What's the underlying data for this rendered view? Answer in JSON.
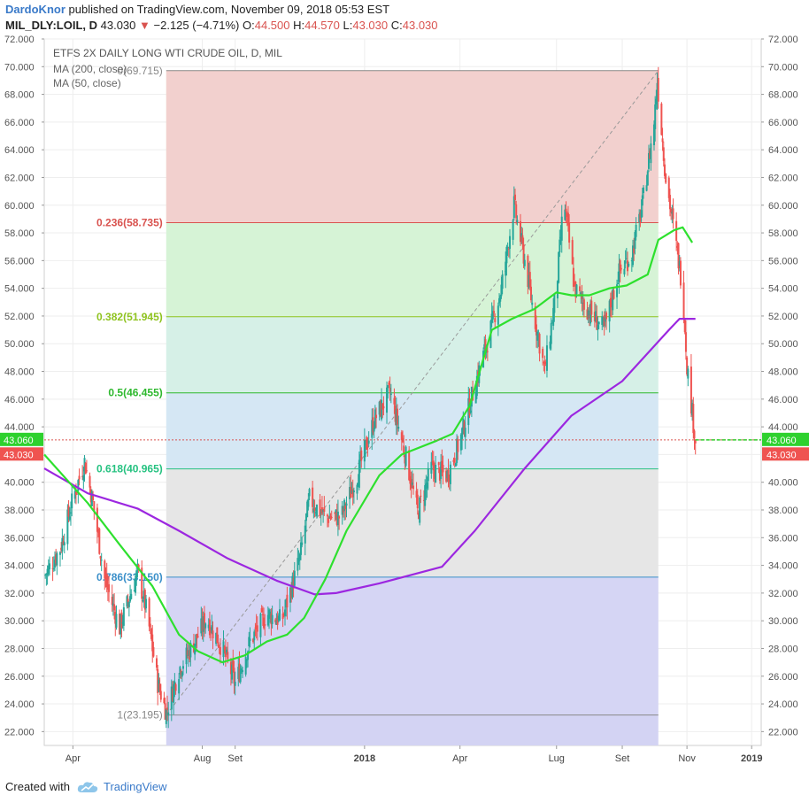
{
  "header": {
    "author": "DardoKnor",
    "published_text": "published on TradingView.com, November 09, 2018 05:53 EST",
    "symbol": "MIL_DLY:LOIL, D",
    "last": "43.030",
    "change": "−2.125 (−4.71%)",
    "o_label": "O:",
    "o_val": "44.500",
    "h_label": "H:",
    "h_val": "44.570",
    "l_label": "L:",
    "l_val": "43.030",
    "c_label": "C:",
    "c_val": "43.030"
  },
  "footer": {
    "created_with": "Created with",
    "brand": "TradingView",
    "logo_icon": "tradingview-cloud-icon"
  },
  "colors": {
    "up": "#26a69a",
    "down": "#ef5350",
    "ma200": "#9c27e0",
    "ma50": "#2ee02e",
    "fib_0": "#f2d0ce",
    "fib_236": "#eef2cf",
    "fib_382": "#d4f2d4",
    "fib_5": "#d4efe6",
    "fib_618": "#d3e6f3",
    "fib_786": "#e5e5e5",
    "fib_1": "#d3d3f3"
  },
  "chart_data": {
    "type": "candlestick",
    "title": "ETFS 2X DAILY LONG WTI CRUDE OIL, D, MIL",
    "legend": [
      "MA (200, close)",
      "MA (50, close)"
    ],
    "ylim": [
      21,
      72
    ],
    "y_ticks": [
      "22.000",
      "24.000",
      "26.000",
      "28.000",
      "30.000",
      "32.000",
      "34.000",
      "36.000",
      "38.000",
      "40.000",
      "42.000",
      "44.000",
      "46.000",
      "48.000",
      "50.000",
      "52.000",
      "54.000",
      "56.000",
      "58.000",
      "60.000",
      "62.000",
      "64.000",
      "66.000",
      "68.000",
      "70.000",
      "72.000"
    ],
    "x_ticks": [
      {
        "label": "Apr",
        "date": "2017-04-01",
        "bold": false
      },
      {
        "label": "Aug",
        "date": "2017-08-01",
        "bold": false
      },
      {
        "label": "Set",
        "date": "2017-09-01",
        "bold": false
      },
      {
        "label": "2018",
        "date": "2018-01-01",
        "bold": true
      },
      {
        "label": "Apr",
        "date": "2018-04-01",
        "bold": false
      },
      {
        "label": "Lug",
        "date": "2018-07-01",
        "bold": false
      },
      {
        "label": "Set",
        "date": "2018-09-01",
        "bold": false
      },
      {
        "label": "Nov",
        "date": "2018-11-01",
        "bold": false
      },
      {
        "label": "2019",
        "date": "2019-01-01",
        "bold": true
      }
    ],
    "x_range": [
      "2017-03-05",
      "2019-01-10"
    ],
    "close_path": [
      [
        "2017-03-05",
        33.2
      ],
      [
        "2017-03-20",
        35.2
      ],
      [
        "2017-04-01",
        38.8
      ],
      [
        "2017-04-12",
        41.5
      ],
      [
        "2017-04-20",
        38.5
      ],
      [
        "2017-05-01",
        33.0
      ],
      [
        "2017-05-15",
        29.5
      ],
      [
        "2017-06-01",
        33.5
      ],
      [
        "2017-06-10",
        30.5
      ],
      [
        "2017-06-20",
        25.5
      ],
      [
        "2017-06-28",
        23.4
      ],
      [
        "2017-07-10",
        26.5
      ],
      [
        "2017-07-25",
        28.5
      ],
      [
        "2017-08-05",
        30.2
      ],
      [
        "2017-08-20",
        28.0
      ],
      [
        "2017-09-01",
        25.5
      ],
      [
        "2017-09-15",
        28.5
      ],
      [
        "2017-10-01",
        30.5
      ],
      [
        "2017-10-15",
        30.0
      ],
      [
        "2017-11-01",
        34.5
      ],
      [
        "2017-11-10",
        38.8
      ],
      [
        "2017-11-25",
        37.5
      ],
      [
        "2017-12-10",
        37.5
      ],
      [
        "2017-12-25",
        40.5
      ],
      [
        "2018-01-10",
        44.5
      ],
      [
        "2018-01-25",
        46.5
      ],
      [
        "2018-02-10",
        41.5
      ],
      [
        "2018-02-20",
        37.8
      ],
      [
        "2018-03-05",
        41.0
      ],
      [
        "2018-03-20",
        40.5
      ],
      [
        "2018-04-01",
        43.0
      ],
      [
        "2018-04-15",
        47.0
      ],
      [
        "2018-04-28",
        50.5
      ],
      [
        "2018-05-10",
        54.0
      ],
      [
        "2018-05-22",
        60.0
      ],
      [
        "2018-06-01",
        56.0
      ],
      [
        "2018-06-10",
        52.0
      ],
      [
        "2018-06-20",
        48.0
      ],
      [
        "2018-07-01",
        54.0
      ],
      [
        "2018-07-08",
        60.5
      ],
      [
        "2018-07-18",
        54.0
      ],
      [
        "2018-07-30",
        52.5
      ],
      [
        "2018-08-15",
        51.0
      ],
      [
        "2018-08-28",
        55.0
      ],
      [
        "2018-09-10",
        56.5
      ],
      [
        "2018-09-20",
        60.0
      ],
      [
        "2018-10-01",
        66.0
      ],
      [
        "2018-10-04",
        69.0
      ],
      [
        "2018-10-12",
        62.0
      ],
      [
        "2018-10-22",
        57.0
      ],
      [
        "2018-10-28",
        54.0
      ],
      [
        "2018-11-01",
        48.5
      ],
      [
        "2018-11-06",
        45.0
      ],
      [
        "2018-11-09",
        43.03
      ]
    ],
    "ma200": [
      [
        "2017-03-05",
        41.0
      ],
      [
        "2017-04-15",
        39.2
      ],
      [
        "2017-06-01",
        38.1
      ],
      [
        "2017-07-10",
        36.5
      ],
      [
        "2017-08-25",
        34.5
      ],
      [
        "2017-10-10",
        32.9
      ],
      [
        "2017-11-15",
        31.9
      ],
      [
        "2017-12-05",
        32.0
      ],
      [
        "2018-01-15",
        32.7
      ],
      [
        "2018-03-15",
        33.9
      ],
      [
        "2018-04-15",
        36.5
      ],
      [
        "2018-06-01",
        41.0
      ],
      [
        "2018-07-15",
        44.8
      ],
      [
        "2018-09-01",
        47.3
      ],
      [
        "2018-10-15",
        51.0
      ],
      [
        "2018-10-25",
        51.8
      ],
      [
        "2018-11-09",
        51.8
      ]
    ],
    "ma50": [
      [
        "2017-03-05",
        42.0
      ],
      [
        "2017-04-15",
        38.5
      ],
      [
        "2017-05-15",
        35.5
      ],
      [
        "2017-06-15",
        32.5
      ],
      [
        "2017-07-10",
        29.0
      ],
      [
        "2017-07-28",
        27.8
      ],
      [
        "2017-08-20",
        27.0
      ],
      [
        "2017-09-10",
        27.5
      ],
      [
        "2017-10-01",
        28.5
      ],
      [
        "2017-10-20",
        29.0
      ],
      [
        "2017-11-05",
        30.2
      ],
      [
        "2017-11-25",
        33.0
      ],
      [
        "2017-12-15",
        36.5
      ],
      [
        "2018-01-15",
        40.5
      ],
      [
        "2018-02-05",
        42.0
      ],
      [
        "2018-03-10",
        43.0
      ],
      [
        "2018-03-25",
        43.5
      ],
      [
        "2018-04-10",
        45.5
      ],
      [
        "2018-05-01",
        51.0
      ],
      [
        "2018-05-20",
        51.8
      ],
      [
        "2018-06-10",
        52.5
      ],
      [
        "2018-07-01",
        53.7
      ],
      [
        "2018-07-15",
        53.5
      ],
      [
        "2018-08-01",
        53.5
      ],
      [
        "2018-08-20",
        54.0
      ],
      [
        "2018-09-05",
        54.2
      ],
      [
        "2018-09-25",
        55.0
      ],
      [
        "2018-10-05",
        57.5
      ],
      [
        "2018-10-20",
        58.2
      ],
      [
        "2018-10-28",
        58.4
      ],
      [
        "2018-11-06",
        57.3
      ]
    ],
    "fibonacci": {
      "start_date": "2017-06-28",
      "end_date": "2018-10-05",
      "trend_from": [
        "2017-06-28",
        23.195
      ],
      "trend_to": [
        "2018-10-05",
        69.715
      ],
      "levels": [
        {
          "label": "0(69.715)",
          "value": 69.715,
          "color": "#888888",
          "fill": "fib_0"
        },
        {
          "label": "0.236(58.735)",
          "value": 58.735,
          "color": "#d9534f",
          "fill": "fib_236"
        },
        {
          "label": "0.382(51.945)",
          "value": 51.945,
          "color": "#8fc31f",
          "fill": "fib_382"
        },
        {
          "label": "0.5(46.455)",
          "value": 46.455,
          "color": "#2eb82e",
          "fill": "fib_5"
        },
        {
          "label": "0.618(40.965)",
          "value": 40.965,
          "color": "#26c281",
          "fill": "fib_618"
        },
        {
          "label": "0.786(33.150)",
          "value": 33.15,
          "color": "#3a8fc9",
          "fill": "fib_786"
        },
        {
          "label": "1(23.195)",
          "value": 23.195,
          "color": "#888888",
          "fill": "fib_1"
        }
      ]
    },
    "price_lines": [
      {
        "label": "43.060",
        "value": 43.06,
        "bg": "#2ed12e",
        "dashed": true,
        "start_date": "2018-11-09"
      },
      {
        "label": "43.030",
        "value": 43.03,
        "bg": "#ef5350",
        "dashed": false
      }
    ]
  }
}
